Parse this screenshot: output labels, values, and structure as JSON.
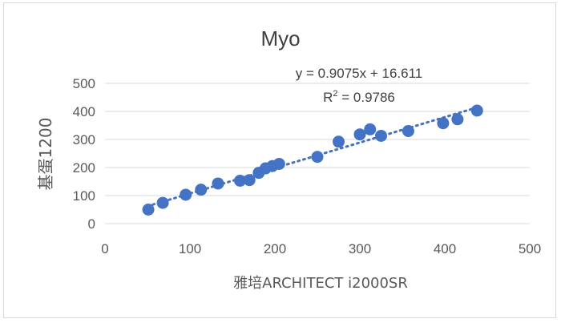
{
  "chart_data": {
    "type": "scatter",
    "title": "Myo",
    "xlabel": "雅培ARCHITECT i2000SR",
    "ylabel": "基蛋1200",
    "xlim": [
      0,
      500
    ],
    "ylim": [
      0,
      500
    ],
    "x_ticks": [
      "0",
      "100",
      "200",
      "300",
      "400",
      "500"
    ],
    "y_ticks": [
      "0",
      "100",
      "200",
      "300",
      "400",
      "500"
    ],
    "grid": "horizontal",
    "marker_color": "#4472c4",
    "trendline": {
      "type": "linear",
      "style": "dotted",
      "slope": 0.9075,
      "intercept": 16.611,
      "x_range": [
        50,
        438
      ],
      "equation": "y = 0.9075x + 16.611",
      "r2_label": "R",
      "r2_sup": "2",
      "r2_value": " = 0.9786"
    },
    "x": [
      51,
      68,
      95,
      113,
      133,
      159,
      170,
      181,
      189,
      197,
      205,
      250,
      275,
      300,
      312,
      325,
      357,
      398,
      415,
      438
    ],
    "y": [
      50,
      74,
      103,
      121,
      143,
      153,
      155,
      181,
      197,
      205,
      213,
      238,
      292,
      318,
      336,
      313,
      330,
      358,
      372,
      403
    ]
  }
}
